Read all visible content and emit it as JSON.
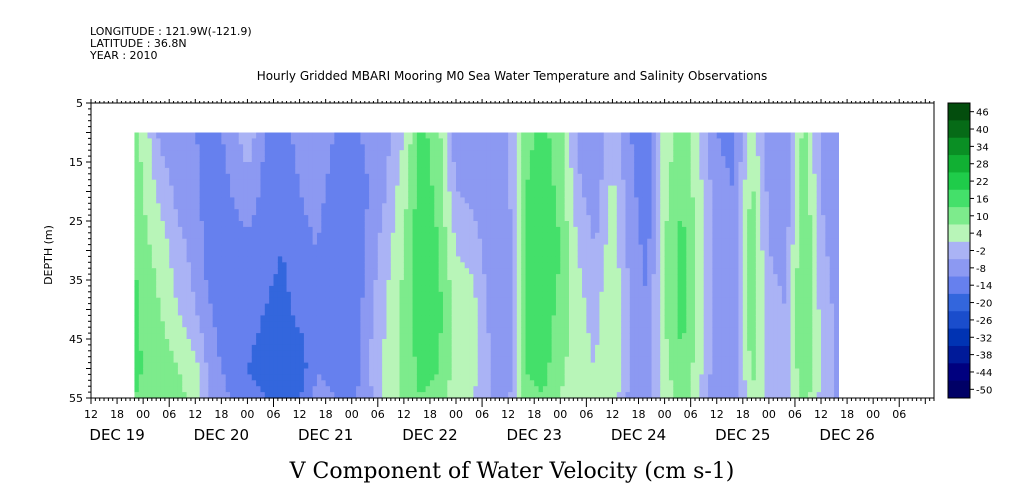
{
  "header": {
    "longitude": "LONGITUDE : 121.9W(-121.9)",
    "latitude": "LATITUDE : 36.8N",
    "year": "YEAR : 2010",
    "title": "Hourly Gridded MBARI Mooring M0 Sea Water Temperature and Salinity Observations"
  },
  "chart_data": {
    "type": "heatmap",
    "title": "Hourly Gridded MBARI Mooring M0 Sea Water Temperature and Salinity Observations",
    "xlabel": "V Component of Water Velocity (cm s-1)",
    "ylabel": "DEPTH (m)",
    "y_inverted": true,
    "ylim": [
      5,
      55
    ],
    "y_ticks": [
      5,
      15,
      25,
      35,
      45,
      55
    ],
    "data_depth_range": [
      10,
      55
    ],
    "x_range_hours": [
      0,
      194
    ],
    "x_hour_tick_labels": [
      "12",
      "18",
      "00",
      "06",
      "12",
      "18",
      "00",
      "06",
      "12",
      "18",
      "00",
      "06",
      "12",
      "18",
      "00",
      "06",
      "12",
      "18",
      "00",
      "06",
      "12",
      "18",
      "00",
      "06",
      "12",
      "18",
      "00",
      "06",
      "12",
      "18",
      "00",
      "06"
    ],
    "x_day_labels": [
      "DEC 19",
      "DEC 20",
      "DEC 21",
      "DEC 22",
      "DEC 23",
      "DEC 24",
      "DEC 25",
      "DEC 26"
    ],
    "data_start": "DEC 19 16:00",
    "data_end": "DEC 26 10:00",
    "colorbar": {
      "levels": [
        -50,
        -44,
        -38,
        -32,
        -26,
        -20,
        -14,
        -8,
        -2,
        4,
        10,
        16,
        22,
        28,
        34,
        40,
        46
      ],
      "tick_labels": [
        "46",
        "40",
        "34",
        "28",
        "22",
        "16",
        "10",
        "4",
        "-2",
        "-8",
        "-14",
        "-20",
        "-26",
        "-32",
        "-38",
        "-44",
        "-50"
      ],
      "colors": [
        "#000066",
        "#00007f",
        "#001a99",
        "#0033b3",
        "#1a4dcc",
        "#3366dd",
        "#6680ee",
        "#8c99f2",
        "#aab3f5",
        "#b8f5b8",
        "#7deb8c",
        "#44e06a",
        "#1fcc4a",
        "#11b033",
        "#0a8f24",
        "#066b17",
        "#034d0d"
      ]
    },
    "profile": {
      "hours": [
        0,
        4,
        8,
        12,
        16,
        20,
        24,
        28,
        32,
        36,
        40,
        44,
        48,
        52,
        56,
        60,
        64,
        68,
        72,
        76,
        80,
        84,
        88,
        92,
        96,
        100,
        104,
        108,
        112,
        116,
        120,
        124,
        128,
        132,
        136,
        140,
        144,
        148,
        152,
        156,
        160,
        164,
        168,
        172,
        176,
        180,
        184,
        188,
        192
      ],
      "depths": [
        10,
        20,
        30,
        40,
        50,
        55
      ],
      "values": [
        [
          0,
          0,
          0,
          0,
          0,
          0
        ],
        [
          10,
          12,
          14,
          14,
          12,
          12
        ],
        [
          16,
          18,
          20,
          22,
          20,
          18
        ],
        [
          8,
          10,
          12,
          14,
          16,
          14
        ],
        [
          -4,
          2,
          8,
          10,
          14,
          12
        ],
        [
          -6,
          -4,
          0,
          4,
          10,
          12
        ],
        [
          -8,
          -6,
          -4,
          -2,
          6,
          8
        ],
        [
          -10,
          -12,
          -14,
          -8,
          -6,
          -4
        ],
        [
          -6,
          -8,
          -12,
          -12,
          -10,
          -8
        ],
        [
          2,
          -4,
          -10,
          -12,
          -14,
          -12
        ],
        [
          -8,
          -10,
          -12,
          -14,
          -16,
          -14
        ],
        [
          -10,
          -12,
          -14,
          -16,
          -20,
          -18
        ],
        [
          -6,
          -8,
          -10,
          -12,
          -18,
          -14
        ],
        [
          -4,
          -6,
          -8,
          -10,
          -8,
          -6
        ],
        [
          -8,
          -10,
          -12,
          -12,
          -10,
          -8
        ],
        [
          -10,
          -12,
          -14,
          -14,
          -12,
          -10
        ],
        [
          -6,
          -8,
          -6,
          -4,
          -2,
          -4
        ],
        [
          -4,
          -2,
          2,
          4,
          6,
          6
        ],
        [
          4,
          8,
          10,
          12,
          12,
          12
        ],
        [
          18,
          20,
          22,
          20,
          18,
          16
        ],
        [
          12,
          14,
          16,
          18,
          16,
          14
        ],
        [
          -6,
          -2,
          4,
          8,
          8,
          6
        ],
        [
          -8,
          -4,
          2,
          6,
          6,
          4
        ],
        [
          -6,
          -8,
          -6,
          -4,
          -2,
          -2
        ],
        [
          -2,
          -4,
          -6,
          -8,
          -6,
          -4
        ],
        [
          14,
          16,
          18,
          18,
          16,
          14
        ],
        [
          18,
          20,
          22,
          20,
          18,
          16
        ],
        [
          12,
          14,
          16,
          14,
          12,
          10
        ],
        [
          -4,
          0,
          4,
          6,
          6,
          4
        ],
        [
          -8,
          -6,
          -2,
          2,
          4,
          4
        ],
        [
          2,
          6,
          8,
          10,
          10,
          8
        ],
        [
          -8,
          -6,
          -4,
          -2,
          -2,
          -4
        ],
        [
          -10,
          -12,
          -10,
          -8,
          -6,
          -6
        ],
        [
          6,
          8,
          10,
          10,
          8,
          6
        ],
        [
          14,
          16,
          18,
          18,
          16,
          14
        ],
        [
          4,
          6,
          8,
          8,
          6,
          4
        ],
        [
          -8,
          -6,
          -4,
          -4,
          -6,
          -8
        ],
        [
          -10,
          -8,
          -6,
          -6,
          -8,
          -8
        ],
        [
          8,
          12,
          14,
          14,
          12,
          10
        ],
        [
          -6,
          -4,
          -2,
          0,
          2,
          2
        ],
        [
          -8,
          -6,
          -4,
          -2,
          0,
          0
        ],
        [
          12,
          16,
          18,
          18,
          16,
          14
        ],
        [
          -4,
          -2,
          0,
          2,
          4,
          2
        ],
        [
          -6,
          -8,
          -6,
          -4,
          -4,
          -4
        ],
        [
          16,
          18,
          20,
          22,
          20,
          18
        ],
        [
          10,
          12,
          14,
          14,
          10,
          8
        ],
        [
          -4,
          -2,
          0,
          -2,
          -4,
          -4
        ],
        [
          -8,
          -10,
          -10,
          -8,
          -6,
          -4
        ],
        [
          -8,
          -10,
          -10,
          -8,
          -6,
          -4
        ]
      ]
    }
  }
}
